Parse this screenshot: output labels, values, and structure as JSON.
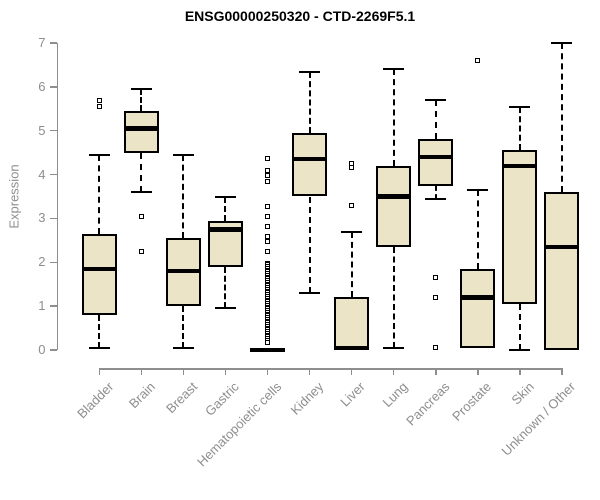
{
  "chart_data": {
    "type": "box",
    "title": "ENSG00000250320 - CTD-2269F5.1",
    "ylabel": "Expression",
    "ylim": [
      0,
      7
    ],
    "yticks": [
      0,
      1,
      2,
      3,
      4,
      5,
      6,
      7
    ],
    "grid": "off",
    "legend": "none",
    "categories": [
      "Bladder",
      "Brain",
      "Breast",
      "Gastric",
      "Hematopoietic cells",
      "Kidney",
      "Liver",
      "Lung",
      "Pancreas",
      "Prostate",
      "Skin",
      "Unknown / Other"
    ],
    "series": [
      {
        "name": "Bladder",
        "whisker_low": 0.05,
        "q1": 0.8,
        "median": 1.85,
        "q3": 2.65,
        "whisker_high": 4.45,
        "outliers": [
          5.55,
          5.7
        ]
      },
      {
        "name": "Brain",
        "whisker_low": 3.6,
        "q1": 4.5,
        "median": 5.05,
        "q3": 5.45,
        "whisker_high": 5.95,
        "outliers": [
          3.05,
          2.25
        ]
      },
      {
        "name": "Breast",
        "whisker_low": 0.05,
        "q1": 1.0,
        "median": 1.8,
        "q3": 2.55,
        "whisker_high": 4.45,
        "outliers": []
      },
      {
        "name": "Gastric",
        "whisker_low": 0.95,
        "q1": 1.9,
        "median": 2.75,
        "q3": 2.95,
        "whisker_high": 3.5,
        "outliers": []
      },
      {
        "name": "Hematopoietic cells",
        "whisker_low": 0,
        "q1": 0,
        "median": 0,
        "q3": 0.05,
        "whisker_high": 0.05,
        "outliers": [
          4.37,
          4.1,
          3.97,
          3.85,
          3.27,
          3.04,
          2.81,
          2.58,
          2.47,
          2.24,
          1.98,
          1.94,
          1.9,
          1.86,
          1.82,
          1.78,
          1.74,
          1.7,
          1.66,
          1.62,
          1.58,
          1.54,
          1.5,
          1.46,
          1.42,
          1.38,
          1.34,
          1.3,
          1.26,
          1.22,
          1.18,
          1.14,
          1.1,
          1.06,
          1.02,
          0.98,
          0.94,
          0.9,
          0.86,
          0.82,
          0.78,
          0.74,
          0.7,
          0.66,
          0.62,
          0.58,
          0.54,
          0.5,
          0.46,
          0.42,
          0.38,
          0.34,
          0.3,
          0.26,
          0.22,
          0.18
        ]
      },
      {
        "name": "Kidney",
        "whisker_low": 1.3,
        "q1": 3.5,
        "median": 4.35,
        "q3": 4.95,
        "whisker_high": 6.35,
        "outliers": []
      },
      {
        "name": "Liver",
        "whisker_low": 0,
        "q1": 0,
        "median": 0.05,
        "q3": 1.2,
        "whisker_high": 2.7,
        "outliers": [
          3.3,
          4.15,
          4.25
        ]
      },
      {
        "name": "Lung",
        "whisker_low": 0.05,
        "q1": 2.35,
        "median": 3.5,
        "q3": 4.2,
        "whisker_high": 6.4,
        "outliers": []
      },
      {
        "name": "Pancreas",
        "whisker_low": 3.45,
        "q1": 3.75,
        "median": 4.4,
        "q3": 4.8,
        "whisker_high": 5.7,
        "outliers": [
          1.65,
          1.2,
          0.05
        ]
      },
      {
        "name": "Prostate",
        "whisker_low": 0.05,
        "q1": 0.05,
        "median": 1.2,
        "q3": 1.85,
        "whisker_high": 3.65,
        "outliers": [
          6.6
        ]
      },
      {
        "name": "Skin",
        "whisker_low": 0,
        "q1": 1.05,
        "median": 4.2,
        "q3": 4.55,
        "whisker_high": 5.55,
        "outliers": []
      },
      {
        "name": "Unknown / Other",
        "whisker_low": 0,
        "q1": 0,
        "median": 2.35,
        "q3": 3.6,
        "whisker_high": 7.0,
        "outliers": []
      }
    ],
    "colors": {
      "box_fill": "#EBE4C6",
      "axis_gray": "#8E8E8E",
      "ink": "#000000",
      "background": "#FFFFFF"
    }
  }
}
